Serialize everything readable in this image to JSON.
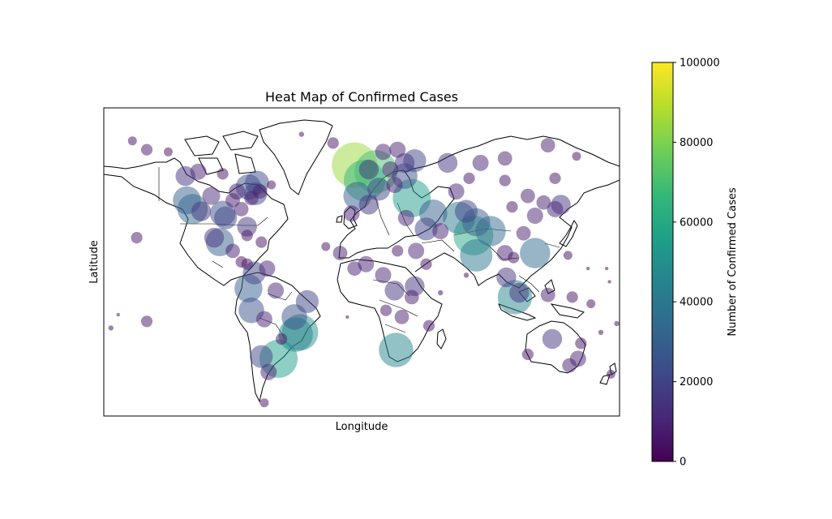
{
  "chart_data": {
    "type": "scatter",
    "title": "Heat Map of Confirmed Cases",
    "xlabel": "Longitude",
    "ylabel": "Latitude",
    "xlim": [
      -180,
      180
    ],
    "ylim": [
      -60,
      80
    ],
    "grid": false,
    "legend": "none",
    "basemap": "world coastlines and country borders",
    "point_alpha": 0.5,
    "colorbar": {
      "label": "Number of Confirmed Cases",
      "colormap": "viridis",
      "range": [
        0,
        100000
      ],
      "ticks": [
        0,
        20000,
        40000,
        60000,
        80000,
        100000
      ],
      "tick_labels": [
        "0",
        "20000",
        "40000",
        "60000",
        "80000",
        "100000"
      ],
      "stops": [
        "#440154",
        "#482878",
        "#3e4a89",
        "#31688e",
        "#26828e",
        "#1f9e89",
        "#35b779",
        "#6ece58",
        "#b5de2b",
        "#fde725"
      ]
    },
    "points": [
      {
        "lon": -118,
        "lat": 34,
        "cases": 35000
      },
      {
        "lon": -122,
        "lat": 38,
        "cases": 30000
      },
      {
        "lon": -112,
        "lat": 33,
        "cases": 15000
      },
      {
        "lon": -105,
        "lat": 40,
        "cases": 12000
      },
      {
        "lon": -97,
        "lat": 32,
        "cases": 25000
      },
      {
        "lon": -95,
        "lat": 30,
        "cases": 20000
      },
      {
        "lon": -90,
        "lat": 38,
        "cases": 8000
      },
      {
        "lon": -87,
        "lat": 42,
        "cases": 10000
      },
      {
        "lon": -84,
        "lat": 34,
        "cases": 8000
      },
      {
        "lon": -80,
        "lat": 26,
        "cases": 15000
      },
      {
        "lon": -77,
        "lat": 39,
        "cases": 8000
      },
      {
        "lon": -74,
        "lat": 41,
        "cases": 20000
      },
      {
        "lon": -71,
        "lat": 42,
        "cases": 8000
      },
      {
        "lon": -79,
        "lat": 44,
        "cases": 25000
      },
      {
        "lon": -73,
        "lat": 46,
        "cases": 22000
      },
      {
        "lon": -123,
        "lat": 49,
        "cases": 15000
      },
      {
        "lon": -114,
        "lat": 51,
        "cases": 10000
      },
      {
        "lon": -97,
        "lat": 50,
        "cases": 5000
      },
      {
        "lon": -63,
        "lat": 45,
        "cases": 3000
      },
      {
        "lon": -150,
        "lat": 61,
        "cases": 5000
      },
      {
        "lon": -160,
        "lat": 65,
        "cases": 3000
      },
      {
        "lon": -135,
        "lat": 60,
        "cases": 3000
      },
      {
        "lon": -99,
        "lat": 19,
        "cases": 30000
      },
      {
        "lon": -103,
        "lat": 21,
        "cases": 15000
      },
      {
        "lon": -90,
        "lat": 15,
        "cases": 8000
      },
      {
        "lon": -84,
        "lat": 10,
        "cases": 5000
      },
      {
        "lon": -80,
        "lat": 9,
        "cases": 5000
      },
      {
        "lon": -75,
        "lat": 5,
        "cases": 20000
      },
      {
        "lon": -79,
        "lat": -2,
        "cases": 30000
      },
      {
        "lon": -77,
        "lat": -12,
        "cases": 25000
      },
      {
        "lon": -66,
        "lat": 7,
        "cases": 10000
      },
      {
        "lon": -68,
        "lat": -16,
        "cases": 10000
      },
      {
        "lon": -47,
        "lat": -15,
        "cases": 25000
      },
      {
        "lon": -43,
        "lat": -22,
        "cases": 50000
      },
      {
        "lon": -46,
        "lat": -23,
        "cases": 45000
      },
      {
        "lon": -38,
        "lat": -8,
        "cases": 20000
      },
      {
        "lon": -60,
        "lat": -3,
        "cases": 10000
      },
      {
        "lon": -70,
        "lat": -33,
        "cases": 20000
      },
      {
        "lon": -58,
        "lat": -34,
        "cases": 55000
      },
      {
        "lon": -65,
        "lat": -40,
        "cases": 10000
      },
      {
        "lon": -56,
        "lat": -25,
        "cases": 5000
      },
      {
        "lon": -68,
        "lat": -54,
        "cases": 3000
      },
      {
        "lon": -80,
        "lat": 22,
        "cases": 5000
      },
      {
        "lon": -70,
        "lat": 19,
        "cases": 5000
      },
      {
        "lon": -157,
        "lat": 21,
        "cases": 5000
      },
      {
        "lon": -175,
        "lat": -20,
        "cases": 1000
      },
      {
        "lon": -150,
        "lat": -17,
        "cases": 5000
      },
      {
        "lon": -170,
        "lat": -14,
        "cases": 500
      },
      {
        "lon": -5,
        "lat": 54,
        "cases": 85000
      },
      {
        "lon": -3,
        "lat": 40,
        "cases": 30000
      },
      {
        "lon": 2,
        "lat": 47,
        "cases": 65000
      },
      {
        "lon": 10,
        "lat": 51,
        "cases": 70000
      },
      {
        "lon": 12,
        "lat": 43,
        "cases": 20000
      },
      {
        "lon": 5,
        "lat": 52,
        "cases": 15000
      },
      {
        "lon": 20,
        "lat": 52,
        "cases": 10000
      },
      {
        "lon": 15,
        "lat": 60,
        "cases": 10000
      },
      {
        "lon": 25,
        "lat": 61,
        "cases": 10000
      },
      {
        "lon": 30,
        "lat": 55,
        "cases": 15000
      },
      {
        "lon": 37,
        "lat": 56,
        "cases": 20000
      },
      {
        "lon": 30,
        "lat": 49,
        "cases": 25000
      },
      {
        "lon": 35,
        "lat": 39,
        "cases": 55000
      },
      {
        "lon": 23,
        "lat": 45,
        "cases": 10000
      },
      {
        "lon": 50,
        "lat": 32,
        "cases": 30000
      },
      {
        "lon": 45,
        "lat": 25,
        "cases": 20000
      },
      {
        "lon": 55,
        "lat": 24,
        "cases": 10000
      },
      {
        "lon": 68,
        "lat": 30,
        "cases": 40000
      },
      {
        "lon": 78,
        "lat": 22,
        "cases": 60000
      },
      {
        "lon": 73,
        "lat": 33,
        "cases": 20000
      },
      {
        "lon": 80,
        "lat": 28,
        "cases": 30000
      },
      {
        "lon": 90,
        "lat": 24,
        "cases": 35000
      },
      {
        "lon": 80,
        "lat": 13,
        "cases": 40000
      },
      {
        "lon": 66,
        "lat": 42,
        "cases": 10000
      },
      {
        "lon": 75,
        "lat": 48,
        "cases": 5000
      },
      {
        "lon": 105,
        "lat": 35,
        "cases": 5000
      },
      {
        "lon": 116,
        "lat": 40,
        "cases": 8000
      },
      {
        "lon": 121,
        "lat": 31,
        "cases": 10000
      },
      {
        "lon": 113,
        "lat": 23,
        "cases": 8000
      },
      {
        "lon": 127,
        "lat": 37,
        "cases": 8000
      },
      {
        "lon": 139,
        "lat": 36,
        "cases": 15000
      },
      {
        "lon": 135,
        "lat": 34,
        "cases": 10000
      },
      {
        "lon": 100,
        "lat": 14,
        "cases": 10000
      },
      {
        "lon": 106,
        "lat": 12,
        "cases": 5000
      },
      {
        "lon": 101,
        "lat": 3,
        "cases": 15000
      },
      {
        "lon": 107,
        "lat": -6,
        "cases": 45000
      },
      {
        "lon": 121,
        "lat": 14,
        "cases": 35000
      },
      {
        "lon": 110,
        "lat": -4,
        "cases": 15000
      },
      {
        "lon": 130,
        "lat": -5,
        "cases": 8000
      },
      {
        "lon": 60,
        "lat": 55,
        "cases": 15000
      },
      {
        "lon": 83,
        "lat": 55,
        "cases": 10000
      },
      {
        "lon": 100,
        "lat": 57,
        "cases": 8000
      },
      {
        "lon": 130,
        "lat": 63,
        "cases": 8000
      },
      {
        "lon": 100,
        "lat": 47,
        "cases": 5000
      },
      {
        "lon": 135,
        "lat": 48,
        "cases": 5000
      },
      {
        "lon": 150,
        "lat": 58,
        "cases": 3000
      },
      {
        "lon": 5,
        "lat": 36,
        "cases": 15000
      },
      {
        "lon": -7,
        "lat": 32,
        "cases": 10000
      },
      {
        "lon": 31,
        "lat": 30,
        "cases": 10000
      },
      {
        "lon": 38,
        "lat": 15,
        "cases": 10000
      },
      {
        "lon": -15,
        "lat": 14,
        "cases": 8000
      },
      {
        "lon": -5,
        "lat": 7,
        "cases": 8000
      },
      {
        "lon": 3,
        "lat": 9,
        "cases": 10000
      },
      {
        "lon": 15,
        "lat": 4,
        "cases": 10000
      },
      {
        "lon": 25,
        "lat": 15,
        "cases": 5000
      },
      {
        "lon": 23,
        "lat": -3,
        "cases": 15000
      },
      {
        "lon": 37,
        "lat": -1,
        "cases": 15000
      },
      {
        "lon": 35,
        "lat": -6,
        "cases": 8000
      },
      {
        "lon": 28,
        "lat": -15,
        "cases": 8000
      },
      {
        "lon": 17,
        "lat": -12,
        "cases": 5000
      },
      {
        "lon": 24,
        "lat": -30,
        "cases": 45000
      },
      {
        "lon": 47,
        "lat": -19,
        "cases": 5000
      },
      {
        "lon": 45,
        "lat": 9,
        "cases": 5000
      },
      {
        "lon": 133,
        "lat": -25,
        "cases": 15000
      },
      {
        "lon": 151,
        "lat": -34,
        "cases": 10000
      },
      {
        "lon": 145,
        "lat": -37,
        "cases": 8000
      },
      {
        "lon": 116,
        "lat": -32,
        "cases": 5000
      },
      {
        "lon": 153,
        "lat": -27,
        "cases": 5000
      },
      {
        "lon": 174,
        "lat": -41,
        "cases": 3000
      },
      {
        "lon": 147,
        "lat": -6,
        "cases": 5000
      },
      {
        "lon": 160,
        "lat": -9,
        "cases": 3000
      },
      {
        "lon": 178,
        "lat": -18,
        "cases": 1000
      },
      {
        "lon": 167,
        "lat": -22,
        "cases": 1000
      },
      {
        "lon": -20,
        "lat": 64,
        "cases": 5000
      },
      {
        "lon": -42,
        "lat": 68,
        "cases": 1000
      },
      {
        "lon": -25,
        "lat": 17,
        "cases": 3000
      },
      {
        "lon": 55,
        "lat": -4,
        "cases": 1000
      },
      {
        "lon": 73,
        "lat": 4,
        "cases": 1000
      },
      {
        "lon": 144,
        "lat": 13,
        "cases": 3000
      },
      {
        "lon": 158,
        "lat": 7,
        "cases": 500
      },
      {
        "lon": 171,
        "lat": 7,
        "cases": 500
      },
      {
        "lon": 173,
        "lat": 1,
        "cases": 500
      },
      {
        "lon": -10,
        "lat": -15,
        "cases": 500
      }
    ]
  }
}
